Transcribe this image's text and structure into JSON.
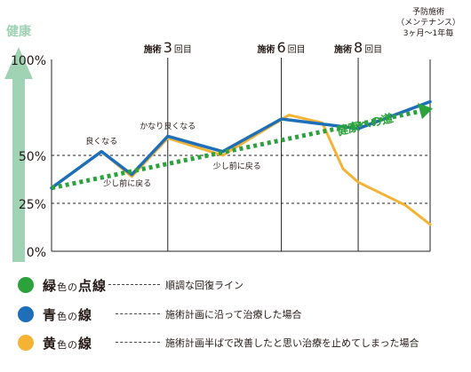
{
  "chart_data": {
    "type": "line",
    "y_axis_title": "健康",
    "ylim": [
      0,
      100
    ],
    "y_ticks": [
      {
        "value": 100,
        "label": "100%"
      },
      {
        "value": 50,
        "label": "50%"
      },
      {
        "value": 25,
        "label": "25%"
      },
      {
        "value": 0,
        "label": "0%"
      }
    ],
    "treatments": [
      {
        "x": 3.07,
        "label_prefix": "施術",
        "label_number": "3",
        "label_suffix": "回目"
      },
      {
        "x": 6.07,
        "label_prefix": "施術",
        "label_number": "6",
        "label_suffix": "回目"
      },
      {
        "x": 8.1,
        "label_prefix": "施術",
        "label_number": "8",
        "label_suffix": "回目"
      }
    ],
    "maintenance_label": [
      "予防施術",
      "（メンテナンス）",
      "3ヶ月〜1年毎"
    ],
    "xlim": [
      0,
      10
    ],
    "series": [
      {
        "key": "blue",
        "color": "#1f6fb8",
        "points": [
          [
            0,
            33
          ],
          [
            1.32,
            52
          ],
          [
            2.12,
            40
          ],
          [
            3.07,
            60
          ],
          [
            4.52,
            52
          ],
          [
            6.07,
            69
          ],
          [
            8.1,
            64
          ],
          [
            10,
            78
          ]
        ]
      },
      {
        "key": "yellow",
        "color": "#f5b335",
        "points": [
          [
            0,
            33
          ],
          [
            1.32,
            52
          ],
          [
            2.12,
            39
          ],
          [
            3.07,
            59
          ],
          [
            4.52,
            50
          ],
          [
            6.27,
            71
          ],
          [
            7.15,
            67
          ],
          [
            7.7,
            43
          ],
          [
            8.1,
            36
          ],
          [
            9.35,
            24
          ],
          [
            10,
            14
          ]
        ]
      },
      {
        "key": "green",
        "color": "#2ca23c",
        "points": [
          [
            0,
            33
          ],
          [
            10,
            74
          ]
        ]
      }
    ],
    "annotations": [
      {
        "text": "良くなる",
        "x": 1.32,
        "y": 56
      },
      {
        "text": "少し前に戻る",
        "x": 2.0,
        "y": 34
      },
      {
        "text": "かなり良くなる",
        "x": 3.07,
        "y": 64
      },
      {
        "text": "少し前に戻る",
        "x": 4.9,
        "y": 43
      },
      {
        "text": "健康への道",
        "x": 8.3,
        "y": 64
      }
    ],
    "colors": {
      "axis_arrow": "#9fd3b3",
      "axis_title": "#9fd3b3",
      "green_label": "#2ca23c"
    }
  },
  "legend": [
    {
      "key": "green",
      "color": "#2ca23c",
      "name_big": "緑",
      "name_mid": "色の",
      "name_end": "点線",
      "description": "順調な回復ライン"
    },
    {
      "key": "blue",
      "color": "#1f6fb8",
      "name_big": "青",
      "name_mid": "色の",
      "name_end": "線",
      "description": "施術計画に沿って治療した場合"
    },
    {
      "key": "yellow",
      "color": "#f5b335",
      "name_big": "黄",
      "name_mid": "色の",
      "name_end": "線",
      "description": "施術計画半ばで改善したと思い治療を止めてしまった場合"
    }
  ]
}
